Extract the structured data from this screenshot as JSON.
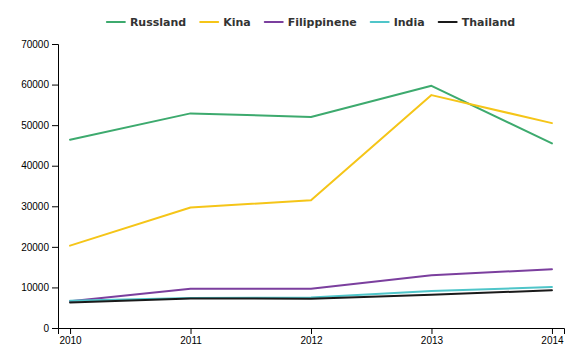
{
  "chart_data": {
    "type": "line",
    "x": [
      2010,
      2011,
      2012,
      2013,
      2014
    ],
    "xlim": [
      2009.9,
      2014.1
    ],
    "xticks": [
      2010,
      2011,
      2012,
      2013,
      2014
    ],
    "ylim": [
      0,
      70000
    ],
    "yticks": [
      0,
      10000,
      20000,
      30000,
      40000,
      50000,
      60000,
      70000
    ],
    "grid": false,
    "legend": "top",
    "series": [
      {
        "name": "Russland",
        "color": "#3DAA6E",
        "values": [
          46400,
          52900,
          52000,
          59700,
          45500
        ]
      },
      {
        "name": "Kina",
        "color": "#F5C518",
        "values": [
          20300,
          29700,
          31500,
          57400,
          50500
        ]
      },
      {
        "name": "Filippinene",
        "color": "#7B3F9E",
        "values": [
          6600,
          9700,
          9700,
          13000,
          14500
        ]
      },
      {
        "name": "India",
        "color": "#4FC5C9",
        "values": [
          6700,
          7400,
          7500,
          9100,
          10100
        ]
      },
      {
        "name": "Thailand",
        "color": "#1A1A1A",
        "values": [
          6300,
          7300,
          7200,
          8200,
          9300
        ]
      }
    ]
  }
}
